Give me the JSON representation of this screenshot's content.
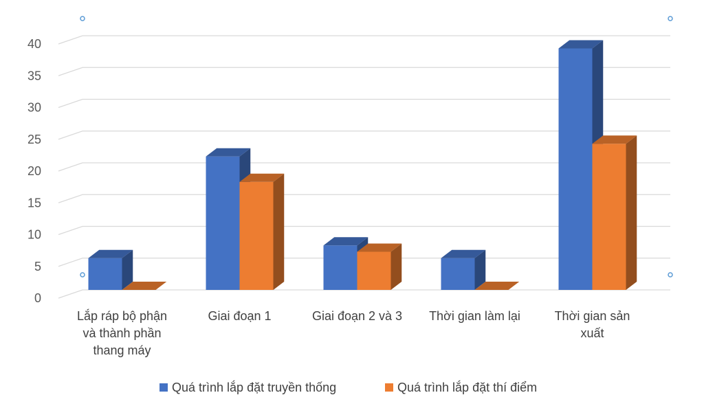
{
  "chart_data": {
    "type": "bar",
    "three_d": true,
    "categories": [
      [
        "Lắp ráp bộ phận",
        "và thành phần",
        "thang máy"
      ],
      [
        "Giai đoạn 1"
      ],
      [
        "Giai đoạn 2 và 3"
      ],
      [
        "Thời gian làm lại"
      ],
      [
        "Thời gian sản",
        "xuất"
      ]
    ],
    "series": [
      {
        "name": "Quá trình lắp đặt truyền thống",
        "color": "#4472C4",
        "values": [
          5,
          21,
          7,
          5,
          38
        ]
      },
      {
        "name": "Quá trình lắp đặt thí điểm",
        "color": "#ED7D31",
        "values": [
          0,
          17,
          6,
          0,
          23
        ]
      }
    ],
    "ylim": [
      0,
      40
    ],
    "yticks": [
      0,
      5,
      10,
      15,
      20,
      25,
      30,
      35,
      40
    ],
    "grid": true,
    "legend": "bottom"
  }
}
